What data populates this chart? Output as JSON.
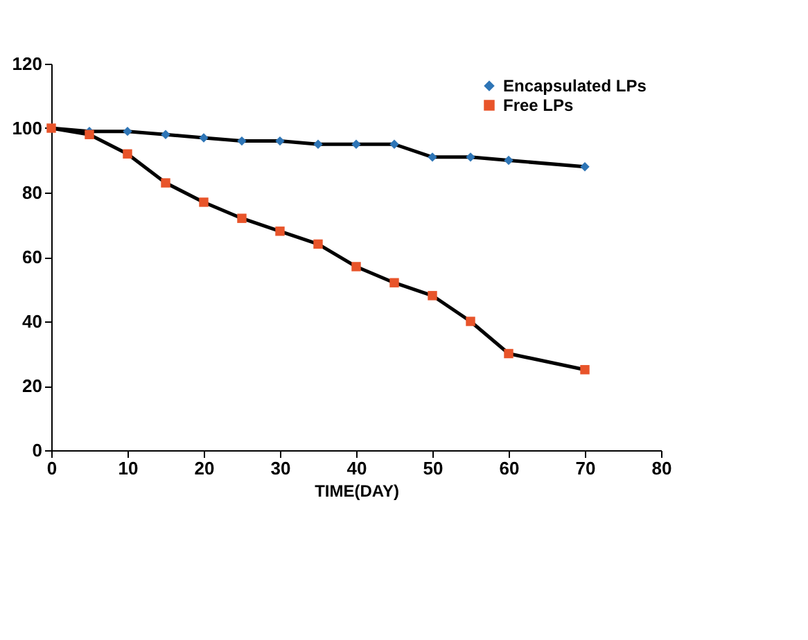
{
  "chart_data": {
    "type": "line",
    "xlabel": "TIME(DAY)",
    "x": [
      0,
      5,
      10,
      15,
      20,
      25,
      30,
      35,
      40,
      45,
      50,
      55,
      60,
      70
    ],
    "series": [
      {
        "name": "Encapsulated LPs",
        "color": "#2e75b6",
        "marker": "diamond",
        "values": [
          100,
          99,
          99,
          98,
          97,
          96,
          96,
          95,
          95,
          95,
          91,
          91,
          90,
          88
        ]
      },
      {
        "name": "Free LPs",
        "color": "#e8542a",
        "marker": "square",
        "values": [
          100,
          98,
          92,
          83,
          77,
          72,
          68,
          64,
          57,
          52,
          48,
          40,
          30,
          25
        ]
      }
    ],
    "xlim": [
      0,
      80
    ],
    "xticks": [
      0,
      10,
      20,
      30,
      40,
      50,
      60,
      70,
      80
    ],
    "ylim": [
      0,
      120
    ],
    "yticks": [
      0,
      20,
      40,
      60,
      80,
      100,
      120
    ],
    "grid": false,
    "legend": "top right",
    "line_style": "solid"
  }
}
